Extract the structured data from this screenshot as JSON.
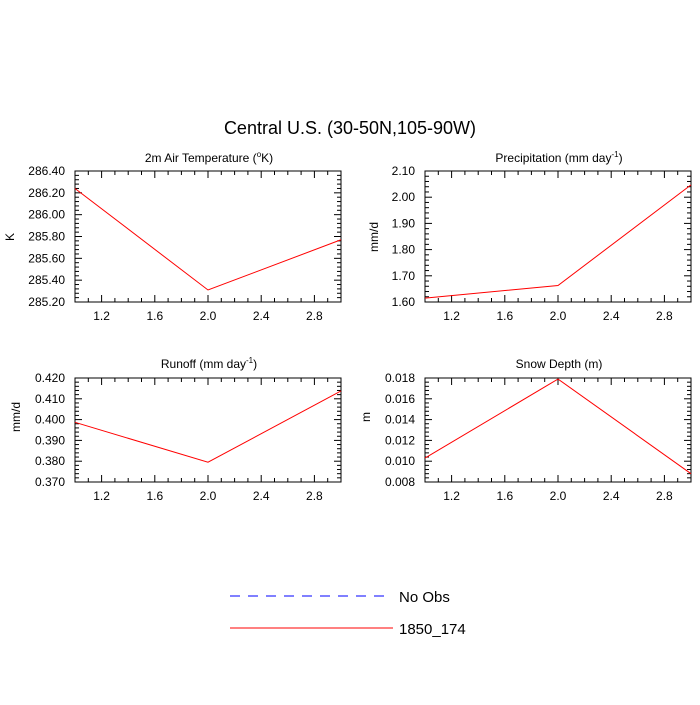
{
  "title": "Central U.S. (30-50N,105-90W)",
  "legend": {
    "entries": [
      {
        "label": "No Obs",
        "color": "#0000ff",
        "dash": "dashed"
      },
      {
        "label": "1850_174",
        "color": "#ff0000",
        "dash": "solid"
      }
    ]
  },
  "chart_data": [
    {
      "type": "line",
      "title": "2m Air Temperature (",
      "title_sup": "o",
      "title_tail": "K)",
      "xlabel": "",
      "ylabel": "K",
      "xlim": [
        1.0,
        3.0
      ],
      "ylim": [
        285.2,
        286.4
      ],
      "xticks": [
        1.2,
        1.6,
        2.0,
        2.4,
        2.8
      ],
      "xtick_labels": [
        "1.2",
        "1.6",
        "2.0",
        "2.4",
        "2.8"
      ],
      "yticks": [
        285.2,
        285.4,
        285.6,
        285.8,
        286.0,
        286.2,
        286.4
      ],
      "ytick_labels": [
        "285.20",
        "285.40",
        "285.60",
        "285.80",
        "286.00",
        "286.20",
        "286.40"
      ],
      "yminor": 0.04,
      "series": [
        {
          "name": "1850_174",
          "x": [
            1.0,
            2.0,
            3.0
          ],
          "y": [
            286.24,
            285.31,
            285.77
          ]
        }
      ]
    },
    {
      "type": "line",
      "title": "Precipitation (mm day",
      "title_sup": "-1",
      "title_tail": ")",
      "xlabel": "",
      "ylabel": "mm/d",
      "xlim": [
        1.0,
        3.0
      ],
      "ylim": [
        1.6,
        2.1
      ],
      "xticks": [
        1.2,
        1.6,
        2.0,
        2.4,
        2.8
      ],
      "xtick_labels": [
        "1.2",
        "1.6",
        "2.0",
        "2.4",
        "2.8"
      ],
      "yticks": [
        1.6,
        1.7,
        1.8,
        1.9,
        2.0,
        2.1
      ],
      "ytick_labels": [
        "1.60",
        "1.70",
        "1.80",
        "1.90",
        "2.00",
        "2.10"
      ],
      "yminor": 0.02,
      "series": [
        {
          "name": "1850_174",
          "x": [
            1.0,
            2.0,
            3.0
          ],
          "y": [
            1.615,
            1.663,
            2.047
          ]
        }
      ]
    },
    {
      "type": "line",
      "title": "Runoff (mm day",
      "title_sup": "-1",
      "title_tail": ")",
      "xlabel": "",
      "ylabel": "mm/d",
      "xlim": [
        1.0,
        3.0
      ],
      "ylim": [
        0.37,
        0.42
      ],
      "xticks": [
        1.2,
        1.6,
        2.0,
        2.4,
        2.8
      ],
      "xtick_labels": [
        "1.2",
        "1.6",
        "2.0",
        "2.4",
        "2.8"
      ],
      "yticks": [
        0.37,
        0.38,
        0.39,
        0.4,
        0.41,
        0.42
      ],
      "ytick_labels": [
        "0.370",
        "0.380",
        "0.390",
        "0.400",
        "0.410",
        "0.420"
      ],
      "yminor": 0.002,
      "series": [
        {
          "name": "1850_174",
          "x": [
            1.0,
            2.0,
            3.0
          ],
          "y": [
            0.3987,
            0.3795,
            0.4138
          ]
        }
      ]
    },
    {
      "type": "line",
      "title": "Snow Depth (m)",
      "title_sup": "",
      "title_tail": "",
      "xlabel": "",
      "ylabel": "m",
      "xlim": [
        1.0,
        3.0
      ],
      "ylim": [
        0.008,
        0.018
      ],
      "xticks": [
        1.2,
        1.6,
        2.0,
        2.4,
        2.8
      ],
      "xtick_labels": [
        "1.2",
        "1.6",
        "2.0",
        "2.4",
        "2.8"
      ],
      "yticks": [
        0.008,
        0.01,
        0.012,
        0.014,
        0.016,
        0.018
      ],
      "ytick_labels": [
        "0.008",
        "0.010",
        "0.012",
        "0.014",
        "0.016",
        "0.018"
      ],
      "yminor": 0.0004,
      "series": [
        {
          "name": "1850_174",
          "x": [
            1.0,
            2.0,
            3.0
          ],
          "y": [
            0.0103,
            0.0179,
            0.0088
          ]
        }
      ]
    }
  ]
}
